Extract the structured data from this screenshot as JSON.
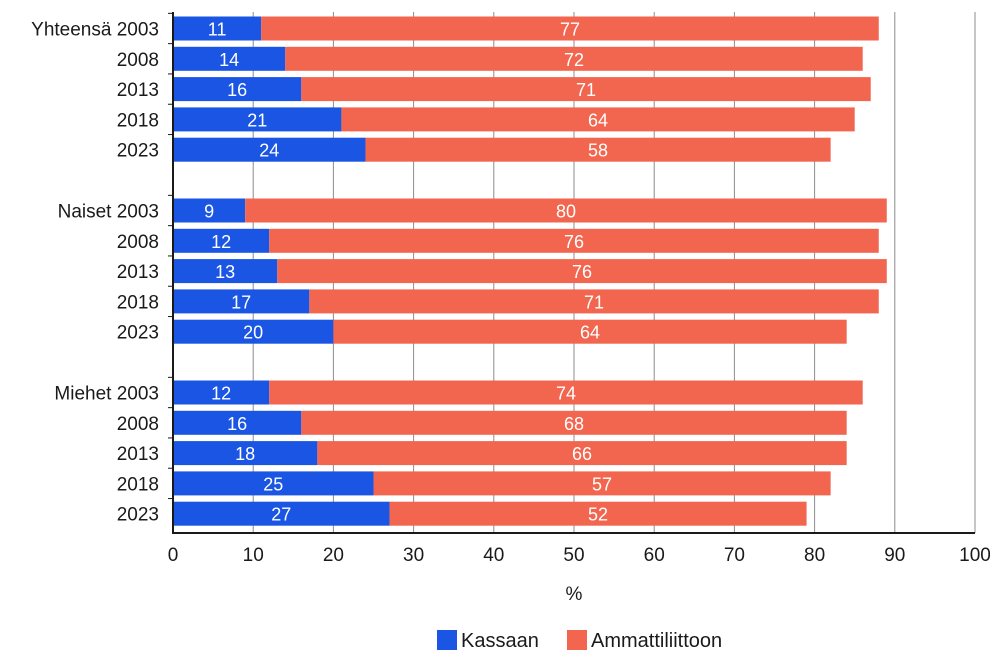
{
  "chart_data": {
    "type": "bar",
    "orientation": "horizontal",
    "stacked": true,
    "xlabel": "%",
    "xlim": [
      0,
      100
    ],
    "x_ticks": [
      0,
      10,
      20,
      30,
      40,
      50,
      60,
      70,
      80,
      90,
      100
    ],
    "grid": "vertical",
    "legend_position": "bottom",
    "categories": [
      "Yhteensä 2003",
      "2008",
      "2013",
      "2018",
      "2023",
      "Naiset 2003",
      "2008",
      "2013",
      "2018",
      "2023",
      "Miehet 2003",
      "2008",
      "2013",
      "2018",
      "2023"
    ],
    "groups": [
      {
        "name": "Yhteensä",
        "indices": [
          0,
          1,
          2,
          3,
          4
        ]
      },
      {
        "name": "Naiset",
        "indices": [
          5,
          6,
          7,
          8,
          9
        ]
      },
      {
        "name": "Miehet",
        "indices": [
          10,
          11,
          12,
          13,
          14
        ]
      }
    ],
    "series": [
      {
        "name": "Kassaan",
        "color": "#1a55e3",
        "values": [
          11,
          14,
          16,
          21,
          24,
          9,
          12,
          13,
          17,
          20,
          12,
          16,
          18,
          25,
          27
        ]
      },
      {
        "name": "Ammattiliittoon",
        "color": "#f2664f",
        "values": [
          77,
          72,
          71,
          64,
          58,
          80,
          76,
          76,
          71,
          64,
          74,
          68,
          66,
          57,
          52
        ]
      }
    ]
  }
}
